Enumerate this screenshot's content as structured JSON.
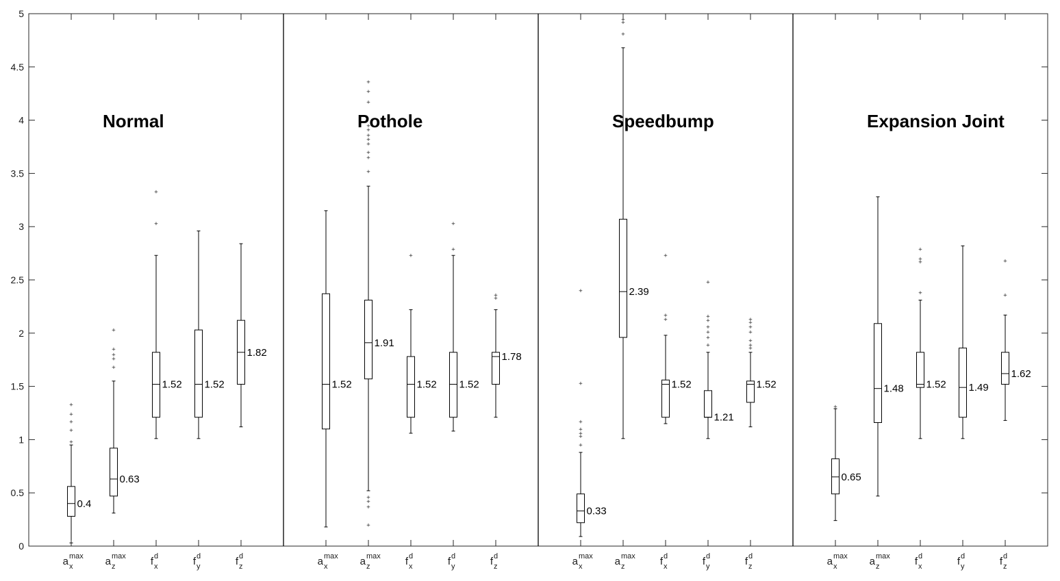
{
  "chart_data": {
    "type": "boxplot",
    "ylim": [
      0,
      5
    ],
    "yticks": [
      "0",
      "0.5",
      "1",
      "1.5",
      "2",
      "2.5",
      "3",
      "3.5",
      "4",
      "4.5",
      "5"
    ],
    "grid": false,
    "categories": [
      {
        "main": "a",
        "sub": "x",
        "sup": "max"
      },
      {
        "main": "a",
        "sub": "z",
        "sup": "max"
      },
      {
        "main": "f",
        "sub": "x",
        "sup": "d"
      },
      {
        "main": "f",
        "sub": "y",
        "sup": "d"
      },
      {
        "main": "f",
        "sub": "z",
        "sup": "d"
      }
    ],
    "groups": [
      {
        "title": "Normal",
        "boxes": [
          {
            "min": 0.03,
            "q1": 0.28,
            "median": 0.4,
            "q3": 0.56,
            "max": 0.95,
            "median_label": "0.4",
            "outliers": [
              0.98,
              1.09,
              1.17,
              1.24,
              1.33
            ]
          },
          {
            "min": 0.31,
            "q1": 0.47,
            "median": 0.63,
            "q3": 0.92,
            "max": 1.55,
            "median_label": "0.63",
            "outliers": [
              1.68,
              1.76,
              1.8,
              1.85,
              2.03
            ]
          },
          {
            "min": 1.01,
            "q1": 1.21,
            "median": 1.52,
            "q3": 1.82,
            "max": 2.73,
            "median_label": "1.52",
            "outliers": [
              3.03,
              3.33
            ]
          },
          {
            "min": 1.01,
            "q1": 1.21,
            "median": 1.52,
            "q3": 2.03,
            "max": 2.96,
            "median_label": "1.52",
            "outliers": []
          },
          {
            "min": 1.12,
            "q1": 1.52,
            "median": 1.82,
            "q3": 2.12,
            "max": 2.84,
            "median_label": "1.82",
            "outliers": []
          }
        ]
      },
      {
        "title": "Pothole",
        "boxes": [
          {
            "min": 0.18,
            "q1": 1.1,
            "median": 1.52,
            "q3": 2.37,
            "max": 3.15,
            "median_label": "1.52",
            "outliers": []
          },
          {
            "min": 0.52,
            "q1": 1.57,
            "median": 1.91,
            "q3": 2.31,
            "max": 3.38,
            "median_label": "1.91",
            "outliers": [
              0.2,
              0.37,
              0.42,
              0.46,
              3.52,
              3.65,
              3.7,
              3.78,
              3.82,
              3.86,
              3.91,
              3.95,
              4.17,
              4.27,
              4.36
            ]
          },
          {
            "min": 1.06,
            "q1": 1.21,
            "median": 1.52,
            "q3": 1.78,
            "max": 2.22,
            "median_label": "1.52",
            "outliers": [
              2.73
            ]
          },
          {
            "min": 1.08,
            "q1": 1.21,
            "median": 1.52,
            "q3": 1.82,
            "max": 2.73,
            "median_label": "1.52",
            "outliers": [
              2.79,
              3.03
            ]
          },
          {
            "min": 1.21,
            "q1": 1.52,
            "median": 1.78,
            "q3": 1.82,
            "max": 2.22,
            "median_label": "1.78",
            "outliers": [
              2.33,
              2.36
            ]
          }
        ]
      },
      {
        "title": "Speedbump",
        "boxes": [
          {
            "min": 0.09,
            "q1": 0.22,
            "median": 0.33,
            "q3": 0.49,
            "max": 0.88,
            "median_label": "0.33",
            "outliers": [
              0.95,
              1.03,
              1.06,
              1.1,
              1.17,
              1.53,
              2.4
            ]
          },
          {
            "min": 1.01,
            "q1": 1.96,
            "median": 2.39,
            "q3": 3.07,
            "max": 4.68,
            "median_label": "2.39",
            "outliers": [
              4.81,
              4.92,
              4.95
            ]
          },
          {
            "min": 1.15,
            "q1": 1.21,
            "median": 1.52,
            "q3": 1.56,
            "max": 1.98,
            "median_label": "1.52",
            "outliers": [
              2.13,
              2.17,
              2.73
            ]
          },
          {
            "min": 1.01,
            "q1": 1.21,
            "median": 1.21,
            "q3": 1.46,
            "max": 1.82,
            "median_label": "1.21",
            "outliers": [
              1.89,
              1.96,
              2.01,
              2.06,
              2.12,
              2.16,
              2.48
            ]
          },
          {
            "min": 1.12,
            "q1": 1.35,
            "median": 1.52,
            "q3": 1.55,
            "max": 1.82,
            "median_label": "1.52",
            "outliers": [
              1.86,
              1.89,
              1.93,
              2.01,
              2.06,
              2.1,
              2.13
            ]
          }
        ]
      },
      {
        "title": "Expansion Joint",
        "boxes": [
          {
            "min": 0.24,
            "q1": 0.49,
            "median": 0.65,
            "q3": 0.82,
            "max": 1.29,
            "median_label": "0.65",
            "outliers": [
              1.31
            ]
          },
          {
            "min": 0.47,
            "q1": 1.16,
            "median": 1.48,
            "q3": 2.09,
            "max": 3.28,
            "median_label": "1.48",
            "outliers": []
          },
          {
            "min": 1.01,
            "q1": 1.49,
            "median": 1.52,
            "q3": 1.82,
            "max": 2.31,
            "median_label": "1.52",
            "outliers": [
              2.38,
              2.67,
              2.7,
              2.79
            ]
          },
          {
            "min": 1.01,
            "q1": 1.21,
            "median": 1.49,
            "q3": 1.86,
            "max": 2.82,
            "median_label": "1.49",
            "outliers": []
          },
          {
            "min": 1.18,
            "q1": 1.52,
            "median": 1.62,
            "q3": 1.82,
            "max": 2.17,
            "median_label": "1.62",
            "outliers": [
              2.36,
              2.68
            ]
          }
        ]
      }
    ]
  }
}
